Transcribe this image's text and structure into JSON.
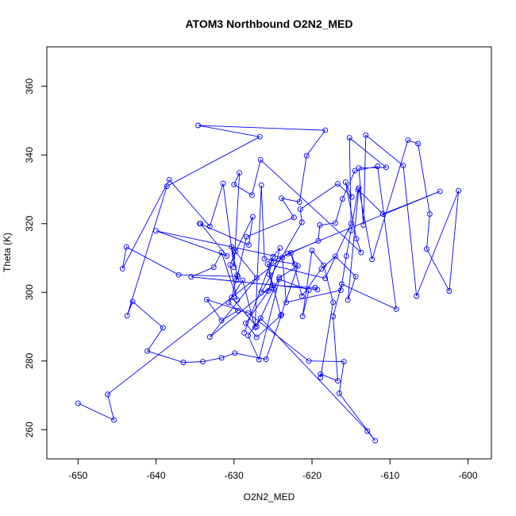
{
  "chart_data": {
    "type": "line",
    "title": "ATOM3 Northbound O2N2_MED",
    "xlabel": "O2N2_MED",
    "ylabel": "Theta (K)",
    "xlim": [
      -654,
      -597
    ],
    "ylim": [
      251.5,
      371.5
    ],
    "x_ticks": [
      -650,
      -640,
      -630,
      -620,
      -610,
      -600
    ],
    "y_ticks": [
      260,
      280,
      300,
      320,
      340,
      360
    ],
    "grid": false,
    "legend": "none",
    "series": [
      {
        "color": "#0000ff",
        "marker": "open-circle",
        "points": [
          [
            -650.0,
            267.7
          ],
          [
            -645.4,
            262.8
          ],
          [
            -646.2,
            270.3
          ],
          [
            -623.1,
            311.3
          ],
          [
            -603.6,
            329.4
          ],
          [
            -610.9,
            322.8
          ],
          [
            -614.1,
            329.9
          ],
          [
            -615.0,
            318.0
          ],
          [
            -615.6,
            310.6
          ],
          [
            -616.3,
            300.6
          ],
          [
            -623.3,
            297.1
          ],
          [
            -623.8,
            310.1
          ],
          [
            -640.0,
            317.9
          ],
          [
            -630.9,
            310.6
          ],
          [
            -634.3,
            320.0
          ],
          [
            -634.4,
            320.0
          ],
          [
            -628.1,
            313.8
          ],
          [
            -627.6,
            322.0
          ],
          [
            -629.8,
            311.9
          ],
          [
            -630.5,
            308.0
          ],
          [
            -629.6,
            297.8
          ],
          [
            -631.6,
            311.6
          ],
          [
            -632.6,
            307.3
          ],
          [
            -635.5,
            304.5
          ],
          [
            -619.3,
            300.8
          ],
          [
            -619.6,
            301.4
          ],
          [
            -625.0,
            302.0
          ],
          [
            -633.1,
            287.0
          ],
          [
            -627.1,
            304.2
          ],
          [
            -630.3,
            313.2
          ],
          [
            -629.6,
            305.0
          ],
          [
            -630.3,
            298.5
          ],
          [
            -627.1,
            290.0
          ],
          [
            -624.2,
            304.3
          ],
          [
            -621.8,
            307.7
          ],
          [
            -624.0,
            293.2
          ],
          [
            -625.7,
            308.2
          ],
          [
            -618.3,
            304.1
          ],
          [
            -615.0,
            320.0
          ],
          [
            -615.2,
            345.0
          ],
          [
            -610.5,
            336.4
          ],
          [
            -614.0,
            336.2
          ],
          [
            -613.4,
            319.6
          ],
          [
            -613.1,
            345.8
          ],
          [
            -608.3,
            336.9
          ],
          [
            -606.6,
            298.9
          ],
          [
            -601.2,
            329.6
          ],
          [
            -602.4,
            300.4
          ],
          [
            -605.3,
            312.6
          ],
          [
            -604.9,
            322.8
          ],
          [
            -606.4,
            343.3
          ],
          [
            -607.7,
            344.3
          ],
          [
            -612.3,
            309.6
          ],
          [
            -614.0,
            330.4
          ],
          [
            -615.4,
            297.8
          ],
          [
            -614.4,
            304.6
          ],
          [
            -617.0,
            310.5
          ],
          [
            -618.8,
            306.8
          ],
          [
            -621.3,
            298.9
          ],
          [
            -622.7,
            311.5
          ],
          [
            -622.2,
            308.2
          ],
          [
            -626.1,
            309.8
          ],
          [
            -626.5,
            331.2
          ],
          [
            -627.3,
            289.8
          ],
          [
            -628.9,
            303.5
          ],
          [
            -630.7,
            297.0
          ],
          [
            -629.5,
            294.7
          ],
          [
            -631.6,
            291.8
          ],
          [
            -633.5,
            297.9
          ],
          [
            -628.2,
            294.0
          ],
          [
            -620.4,
            280.0
          ],
          [
            -615.9,
            279.8
          ],
          [
            -616.5,
            270.6
          ],
          [
            -611.9,
            256.8
          ],
          [
            -612.9,
            259.6
          ],
          [
            -626.6,
            292.5
          ],
          [
            -628.2,
            287.4
          ],
          [
            -626.8,
            280.4
          ],
          [
            -624.2,
            303.8
          ],
          [
            -620.4,
            300.6
          ],
          [
            -621.2,
            293.0
          ],
          [
            -620.0,
            312.2
          ],
          [
            -618.5,
            307.9
          ],
          [
            -617.3,
            297.1
          ],
          [
            -618.9,
            275.2
          ],
          [
            -618.9,
            276.2
          ],
          [
            -616.7,
            274.2
          ],
          [
            -617.3,
            293.0
          ],
          [
            -616.2,
            302.4
          ],
          [
            -609.2,
            295.1
          ],
          [
            -611.6,
            336.7
          ],
          [
            -614.5,
            335.4
          ],
          [
            -616.1,
            327.2
          ],
          [
            -617.0,
            320.2
          ],
          [
            -619.0,
            319.6
          ],
          [
            -619.2,
            315.0
          ],
          [
            -625.2,
            309.0
          ],
          [
            -625.5,
            305.2
          ],
          [
            -624.9,
            300.9
          ],
          [
            -626.5,
            300.0
          ],
          [
            -621.3,
            320.4
          ],
          [
            -621.5,
            324.2
          ],
          [
            -616.7,
            331.6
          ],
          [
            -614.9,
            327.8
          ],
          [
            -615.7,
            332.1
          ],
          [
            -614.3,
            315.6
          ],
          [
            -613.7,
            311.6
          ],
          [
            -626.6,
            338.6
          ],
          [
            -627.7,
            328.3
          ],
          [
            -630.0,
            331.4
          ],
          [
            -629.3,
            334.8
          ],
          [
            -630.0,
            307.3
          ],
          [
            -631.4,
            331.7
          ],
          [
            -633.1,
            319.2
          ],
          [
            -638.3,
            332.8
          ],
          [
            -644.3,
            306.9
          ],
          [
            -643.8,
            313.2
          ],
          [
            -637.1,
            305.1
          ],
          [
            -629.5,
            304.6
          ],
          [
            -629.7,
            303.5
          ],
          [
            -628.4,
            316.2
          ],
          [
            -622.3,
            321.8
          ],
          [
            -623.9,
            327.4
          ],
          [
            -621.6,
            326.3
          ],
          [
            -620.7,
            339.8
          ],
          [
            -618.3,
            347.2
          ],
          [
            -634.6,
            348.6
          ],
          [
            -626.7,
            345.3
          ],
          [
            -638.6,
            330.9
          ],
          [
            -643.7,
            293.2
          ],
          [
            -643.0,
            297.3
          ],
          [
            -639.1,
            289.7
          ],
          [
            -641.1,
            282.9
          ],
          [
            -636.5,
            279.6
          ],
          [
            -634.0,
            279.8
          ],
          [
            -631.6,
            280.9
          ],
          [
            -629.9,
            282.3
          ],
          [
            -625.9,
            280.5
          ],
          [
            -623.9,
            293.5
          ],
          [
            -627.1,
            286.9
          ],
          [
            -628.5,
            291.0
          ],
          [
            -625.6,
            300.4
          ],
          [
            -624.1,
            312.9
          ],
          [
            -625.0,
            310.4
          ],
          [
            -628.7,
            288.2
          ]
        ]
      }
    ]
  }
}
